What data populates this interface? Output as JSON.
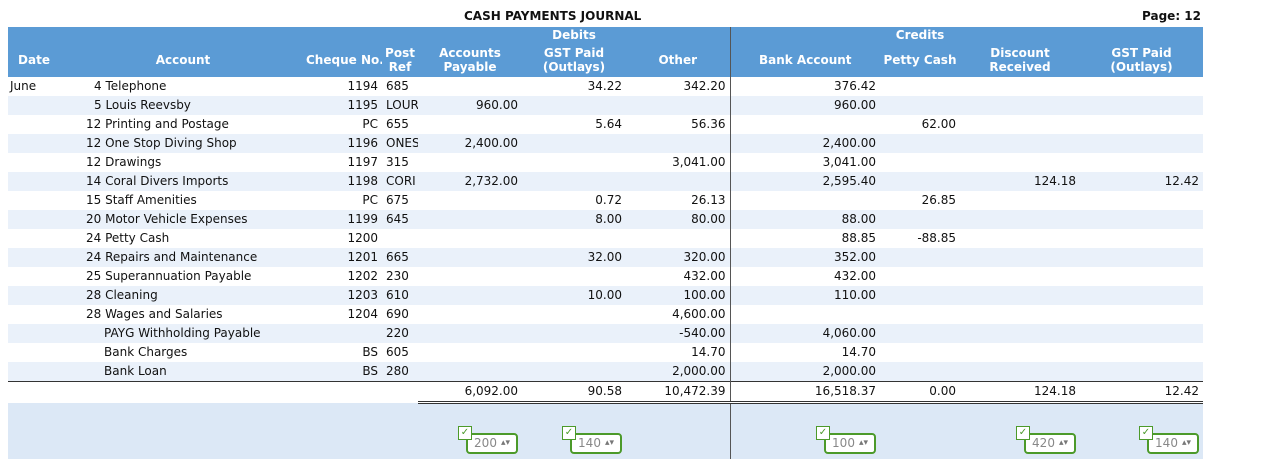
{
  "header": {
    "title": "CASH PAYMENTS JOURNAL",
    "page": "Page: 12"
  },
  "groups": {
    "debits": "Debits",
    "credits": "Credits"
  },
  "columns": {
    "date": "Date",
    "account": "Account",
    "cheque": "Cheque No.",
    "post_ref_1": "Post",
    "post_ref_2": "Ref",
    "ap_1": "Accounts",
    "ap_2": "Payable",
    "gst_1": "GST Paid",
    "gst_2": "(Outlays)",
    "other": "Other",
    "bank": "Bank Account",
    "petty": "Petty Cash",
    "disc_1": "Discount",
    "disc_2": "Received",
    "gstc_1": "GST Paid",
    "gstc_2": "(Outlays)"
  },
  "rows": [
    {
      "date": "June",
      "account": "4 Telephone",
      "cheque": "1194",
      "ref": "685",
      "ap": "",
      "gst": "34.22",
      "other": "342.20",
      "bank": "376.42",
      "petty": "",
      "disc": "",
      "gstc": ""
    },
    {
      "date": "",
      "account": "5 Louis Reevsby",
      "cheque": "1195",
      "ref": "LOUR",
      "ap": "960.00",
      "gst": "",
      "other": "",
      "bank": "960.00",
      "petty": "",
      "disc": "",
      "gstc": ""
    },
    {
      "date": "",
      "account": "12 Printing and Postage",
      "cheque": "PC",
      "ref": "655",
      "ap": "",
      "gst": "5.64",
      "other": "56.36",
      "bank": "",
      "petty": "62.00",
      "disc": "",
      "gstc": ""
    },
    {
      "date": "",
      "account": "12 One Stop Diving Shop",
      "cheque": "1196",
      "ref": "ONES",
      "ap": "2,400.00",
      "gst": "",
      "other": "",
      "bank": "2,400.00",
      "petty": "",
      "disc": "",
      "gstc": ""
    },
    {
      "date": "",
      "account": "12 Drawings",
      "cheque": "1197",
      "ref": "315",
      "ap": "",
      "gst": "",
      "other": "3,041.00",
      "bank": "3,041.00",
      "petty": "",
      "disc": "",
      "gstc": ""
    },
    {
      "date": "",
      "account": "14 Coral Divers Imports",
      "cheque": "1198",
      "ref": "CORI",
      "ap": "2,732.00",
      "gst": "",
      "other": "",
      "bank": "2,595.40",
      "petty": "",
      "disc": "124.18",
      "gstc": "12.42"
    },
    {
      "date": "",
      "account": "15 Staff Amenities",
      "cheque": "PC",
      "ref": "675",
      "ap": "",
      "gst": "0.72",
      "other": "26.13",
      "bank": "",
      "petty": "26.85",
      "disc": "",
      "gstc": ""
    },
    {
      "date": "",
      "account": "20 Motor Vehicle Expenses",
      "cheque": "1199",
      "ref": "645",
      "ap": "",
      "gst": "8.00",
      "other": "80.00",
      "bank": "88.00",
      "petty": "",
      "disc": "",
      "gstc": ""
    },
    {
      "date": "",
      "account": "24 Petty Cash",
      "cheque": "1200",
      "ref": "",
      "ap": "",
      "gst": "",
      "other": "",
      "bank": "88.85",
      "petty": "-88.85",
      "disc": "",
      "gstc": ""
    },
    {
      "date": "",
      "account": "24 Repairs and Maintenance",
      "cheque": "1201",
      "ref": "665",
      "ap": "",
      "gst": "32.00",
      "other": "320.00",
      "bank": "352.00",
      "petty": "",
      "disc": "",
      "gstc": ""
    },
    {
      "date": "",
      "account": "25 Superannuation Payable",
      "cheque": "1202",
      "ref": "230",
      "ap": "",
      "gst": "",
      "other": "432.00",
      "bank": "432.00",
      "petty": "",
      "disc": "",
      "gstc": ""
    },
    {
      "date": "",
      "account": "28 Cleaning",
      "cheque": "1203",
      "ref": "610",
      "ap": "",
      "gst": "10.00",
      "other": "100.00",
      "bank": "110.00",
      "petty": "",
      "disc": "",
      "gstc": ""
    },
    {
      "date": "",
      "account": "28 Wages and Salaries",
      "cheque": "1204",
      "ref": "690",
      "ap": "",
      "gst": "",
      "other": "4,600.00",
      "bank": "",
      "petty": "",
      "disc": "",
      "gstc": ""
    },
    {
      "date": "",
      "account": "PAYG Withholding Payable",
      "cheque": "",
      "ref": "220",
      "ap": "",
      "gst": "",
      "other": "-540.00",
      "bank": "4,060.00",
      "petty": "",
      "disc": "",
      "gstc": ""
    },
    {
      "date": "",
      "account": "Bank Charges",
      "cheque": "BS",
      "ref": "605",
      "ap": "",
      "gst": "",
      "other": "14.70",
      "bank": "14.70",
      "petty": "",
      "disc": "",
      "gstc": ""
    },
    {
      "date": "",
      "account": "Bank Loan",
      "cheque": "BS",
      "ref": "280",
      "ap": "",
      "gst": "",
      "other": "2,000.00",
      "bank": "2,000.00",
      "petty": "",
      "disc": "",
      "gstc": ""
    }
  ],
  "totals": {
    "ap": "6,092.00",
    "gst": "90.58",
    "other": "10,472.39",
    "bank": "16,518.37",
    "petty": "0.00",
    "disc": "124.18",
    "gstc": "12.42"
  },
  "post_refs": {
    "ap": "200",
    "gst": "140",
    "bank": "100",
    "disc": "420",
    "gstc": "140"
  },
  "colors": {
    "header_bg": "#5b9bd5",
    "row_alt": "#eaf1fa",
    "stepper_border": "#4c9a2a"
  }
}
